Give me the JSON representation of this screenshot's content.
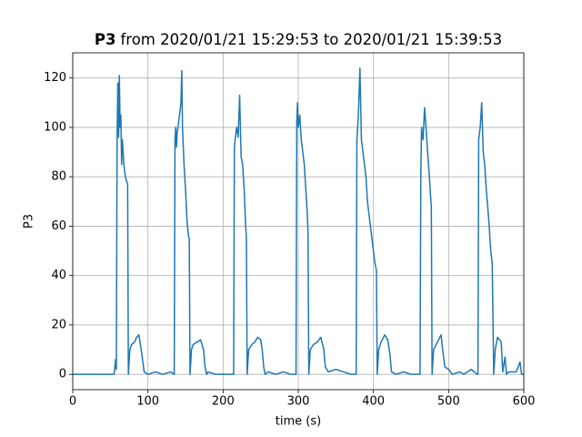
{
  "chart_data": {
    "type": "line",
    "title": {
      "bold": "P3",
      "text": "from 2020/01/21 15:29:53 to 2020/01/21 15:39:53"
    },
    "xlabel": "time (s)",
    "ylabel": "P3",
    "color": "#1f77b4",
    "grid": true,
    "xlim": [
      0,
      600
    ],
    "xticks": [
      0,
      100,
      200,
      300,
      400,
      500,
      600
    ],
    "ylim": [
      -6.2,
      130.2
    ],
    "yticks": [
      0,
      20,
      40,
      60,
      80,
      100,
      120
    ],
    "x": [
      0,
      55,
      57,
      58,
      59,
      60,
      61,
      62,
      63,
      64,
      65,
      66,
      68,
      70,
      72,
      73,
      74,
      76,
      78,
      82,
      85,
      88,
      90,
      92,
      95,
      100,
      110,
      120,
      130,
      135,
      136,
      137,
      138,
      139,
      140,
      142,
      144,
      145,
      146,
      148,
      150,
      152,
      154,
      155,
      156,
      158,
      160,
      165,
      170,
      174,
      176,
      178,
      180,
      190,
      200,
      210,
      214,
      215,
      216,
      218,
      220,
      222,
      224,
      226,
      228,
      230,
      231,
      232,
      234,
      238,
      242,
      246,
      250,
      252,
      254,
      256,
      260,
      270,
      280,
      290,
      295,
      297,
      298,
      299,
      300,
      302,
      304,
      306,
      308,
      310,
      312,
      313,
      314,
      316,
      320,
      325,
      330,
      334,
      336,
      340,
      350,
      360,
      370,
      375,
      377,
      378,
      380,
      382,
      384,
      386,
      388,
      390,
      392,
      396,
      400,
      402,
      404,
      405,
      407,
      410,
      415,
      419,
      422,
      424,
      430,
      440,
      450,
      460,
      462,
      463,
      464,
      466,
      468,
      470,
      472,
      474,
      476,
      477,
      478,
      480,
      485,
      490,
      492,
      495,
      500,
      505,
      515,
      520,
      530,
      538,
      539,
      540,
      542,
      544,
      546,
      548,
      550,
      552,
      554,
      556,
      558,
      560,
      562,
      565,
      568,
      570,
      572,
      575,
      577,
      580,
      590,
      595,
      597,
      600
    ],
    "values": [
      0,
      0,
      6,
      2,
      95,
      118,
      96,
      121,
      100,
      105,
      85,
      95,
      85,
      80,
      78,
      77,
      0,
      10,
      12,
      13,
      15,
      16,
      12,
      8,
      1,
      0,
      1,
      0,
      1,
      0,
      95,
      100,
      92,
      98,
      100,
      105,
      110,
      123,
      100,
      85,
      75,
      62,
      56,
      55,
      0,
      10,
      12,
      13,
      14,
      10,
      3,
      0,
      1,
      0,
      0,
      0,
      0,
      92,
      95,
      100,
      96,
      113,
      88,
      85,
      75,
      60,
      55,
      0,
      10,
      12,
      13,
      15,
      14,
      10,
      3,
      0,
      1,
      0,
      1,
      0,
      0,
      0,
      102,
      110,
      100,
      105,
      95,
      90,
      85,
      75,
      65,
      57,
      0,
      10,
      12,
      13,
      15,
      10,
      3,
      1,
      2,
      1,
      0,
      0,
      0,
      95,
      105,
      124,
      95,
      90,
      85,
      80,
      70,
      60,
      50,
      45,
      42,
      0,
      10,
      13,
      16,
      14,
      8,
      1,
      0,
      1,
      0,
      0,
      0,
      80,
      100,
      95,
      108,
      100,
      90,
      82,
      72,
      68,
      0,
      10,
      13,
      16,
      10,
      3,
      2,
      0,
      1,
      0,
      2,
      0,
      0,
      95,
      100,
      110,
      90,
      85,
      75,
      68,
      60,
      50,
      45,
      0,
      10,
      15,
      14,
      13,
      1,
      7,
      0,
      1,
      1,
      5,
      0,
      0
    ]
  }
}
